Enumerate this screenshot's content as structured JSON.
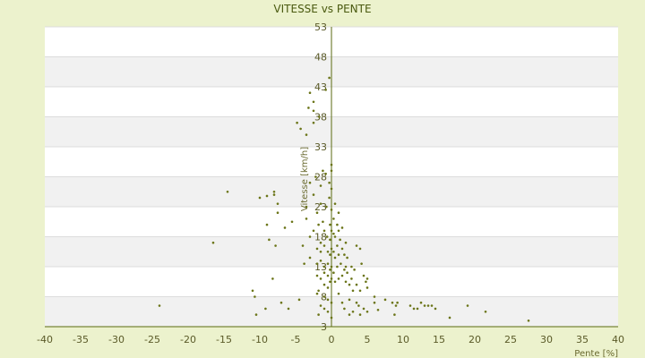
{
  "chart_data": {
    "type": "scatter",
    "title": "VITESSE vs PENTE",
    "xlabel": "Pente [%]",
    "ylabel": "Vitesse [km/h]",
    "xlim": [
      -40,
      40
    ],
    "ylim": [
      3,
      53
    ],
    "x_ticks": [
      -40,
      -35,
      -30,
      -25,
      -20,
      -15,
      -10,
      -5,
      0,
      5,
      10,
      15,
      20,
      25,
      30,
      35,
      40
    ],
    "y_ticks": [
      3,
      8,
      13,
      18,
      23,
      28,
      33,
      38,
      43,
      48,
      53
    ],
    "grid": "alternating horizontal bands",
    "colors": {
      "background": "#ecf2cd",
      "band_light": "#ffffff",
      "band_dark": "#f1f1f1",
      "grid": "#dcdcdc",
      "axis": "#5a6a10",
      "marker": "#6b7518"
    },
    "points": [
      [
        -24,
        6.5
      ],
      [
        -16.5,
        17
      ],
      [
        -14.5,
        25.5
      ],
      [
        -11,
        9
      ],
      [
        -10.7,
        8
      ],
      [
        -10.5,
        5
      ],
      [
        -10,
        24.5
      ],
      [
        -9,
        24.8
      ],
      [
        -9.2,
        6
      ],
      [
        -9,
        20
      ],
      [
        -8.7,
        17.5
      ],
      [
        -8.2,
        11
      ],
      [
        -8,
        25.5
      ],
      [
        -8,
        25
      ],
      [
        -7.5,
        23.5
      ],
      [
        -7.5,
        22
      ],
      [
        -7.8,
        16.5
      ],
      [
        -7,
        7
      ],
      [
        -6.5,
        19.5
      ],
      [
        -6,
        6
      ],
      [
        -5.5,
        20.5
      ],
      [
        -4.8,
        37
      ],
      [
        -4.3,
        36
      ],
      [
        -4.5,
        7.5
      ],
      [
        -4,
        16.5
      ],
      [
        -3.5,
        23
      ],
      [
        -3.8,
        13.5
      ],
      [
        -3,
        42
      ],
      [
        -3.2,
        39.5
      ],
      [
        -3.5,
        35
      ],
      [
        -3,
        27
      ],
      [
        -3.5,
        21
      ],
      [
        -3,
        18
      ],
      [
        -3,
        14.5
      ],
      [
        -2.5,
        40.5
      ],
      [
        -2.5,
        39
      ],
      [
        -2.5,
        37
      ],
      [
        -2.5,
        25
      ],
      [
        -2.2,
        28
      ],
      [
        -2,
        22
      ],
      [
        -2.5,
        19
      ],
      [
        -2,
        16
      ],
      [
        -2,
        13.5
      ],
      [
        -2,
        11.5
      ],
      [
        -2,
        8.5
      ],
      [
        -1.7,
        38
      ],
      [
        -1.5,
        26.5
      ],
      [
        -1.5,
        23.5
      ],
      [
        -1.8,
        20
      ],
      [
        -1.5,
        17
      ],
      [
        -1.5,
        15.5
      ],
      [
        -1.5,
        14
      ],
      [
        -1.5,
        11
      ],
      [
        -1.8,
        9
      ],
      [
        -1.5,
        6.5
      ],
      [
        -1.8,
        5
      ],
      [
        -1.2,
        29
      ],
      [
        -1.2,
        20.5
      ],
      [
        -1,
        19
      ],
      [
        -1,
        16.5
      ],
      [
        -1,
        13
      ],
      [
        -1,
        12
      ],
      [
        -1,
        10
      ],
      [
        -1,
        8
      ],
      [
        -1,
        6
      ],
      [
        -0.8,
        42.5
      ],
      [
        -0.8,
        28.5
      ],
      [
        -0.7,
        23
      ],
      [
        -0.6,
        18
      ],
      [
        -0.5,
        15.5
      ],
      [
        -0.5,
        13.5
      ],
      [
        -0.5,
        11.5
      ],
      [
        -0.5,
        9.5
      ],
      [
        -0.5,
        7.5
      ],
      [
        -0.5,
        5.5
      ],
      [
        -0.3,
        44.5
      ],
      [
        -0.3,
        27
      ],
      [
        -0.3,
        24.5
      ],
      [
        -0.2,
        20
      ],
      [
        -0.2,
        17.5
      ],
      [
        -0.2,
        15
      ],
      [
        -0.2,
        12.5
      ],
      [
        -0.2,
        10.5
      ],
      [
        0,
        30
      ],
      [
        0,
        29
      ],
      [
        0,
        26
      ],
      [
        0,
        22.5
      ],
      [
        0,
        19
      ],
      [
        0,
        16
      ],
      [
        0,
        13
      ],
      [
        0,
        11
      ],
      [
        0,
        7
      ],
      [
        0,
        4.5
      ],
      [
        0.3,
        21
      ],
      [
        0.3,
        18.5
      ],
      [
        0.3,
        15.5
      ],
      [
        0.3,
        12
      ],
      [
        0.5,
        23.5
      ],
      [
        0.5,
        18
      ],
      [
        0.5,
        14.5
      ],
      [
        0.5,
        10.5
      ],
      [
        0.8,
        20
      ],
      [
        0.8,
        16.5
      ],
      [
        0.8,
        13
      ],
      [
        1,
        22
      ],
      [
        1,
        19
      ],
      [
        1,
        15
      ],
      [
        1,
        11
      ],
      [
        1,
        8.5
      ],
      [
        1.2,
        17.5
      ],
      [
        1.3,
        13.5
      ],
      [
        1.5,
        19.5
      ],
      [
        1.5,
        16
      ],
      [
        1.5,
        11.5
      ],
      [
        1.5,
        7
      ],
      [
        1.8,
        15
      ],
      [
        1.8,
        12.5
      ],
      [
        1.8,
        6
      ],
      [
        2,
        17
      ],
      [
        2,
        13
      ],
      [
        2,
        10.5
      ],
      [
        2.2,
        14.5
      ],
      [
        2.2,
        12
      ],
      [
        2.5,
        10
      ],
      [
        2.5,
        7.5
      ],
      [
        2.5,
        5
      ],
      [
        2.8,
        13
      ],
      [
        2.8,
        11
      ],
      [
        3,
        9
      ],
      [
        3,
        5.5
      ],
      [
        3.2,
        12.5
      ],
      [
        3.5,
        10
      ],
      [
        3.5,
        7
      ],
      [
        3.5,
        16.5
      ],
      [
        3.8,
        6.5
      ],
      [
        4,
        16
      ],
      [
        4,
        9
      ],
      [
        4,
        5
      ],
      [
        4.2,
        13.5
      ],
      [
        4.5,
        11.5
      ],
      [
        4.5,
        6
      ],
      [
        4.8,
        10.5
      ],
      [
        5,
        11
      ],
      [
        5,
        9.5
      ],
      [
        5,
        5.5
      ],
      [
        6,
        8
      ],
      [
        6,
        7
      ],
      [
        6.5,
        5.8
      ],
      [
        7.5,
        7.5
      ],
      [
        8.5,
        7
      ],
      [
        8.8,
        5
      ],
      [
        9,
        6.5
      ],
      [
        9.2,
        7
      ],
      [
        11,
        6.5
      ],
      [
        11.5,
        6
      ],
      [
        12,
        6
      ],
      [
        12.5,
        7
      ],
      [
        13,
        6.5
      ],
      [
        13.5,
        6.5
      ],
      [
        14,
        6.5
      ],
      [
        14.5,
        6
      ],
      [
        16.5,
        4.5
      ],
      [
        19,
        6.5
      ],
      [
        21.5,
        5.5
      ],
      [
        27.5,
        4
      ]
    ]
  }
}
